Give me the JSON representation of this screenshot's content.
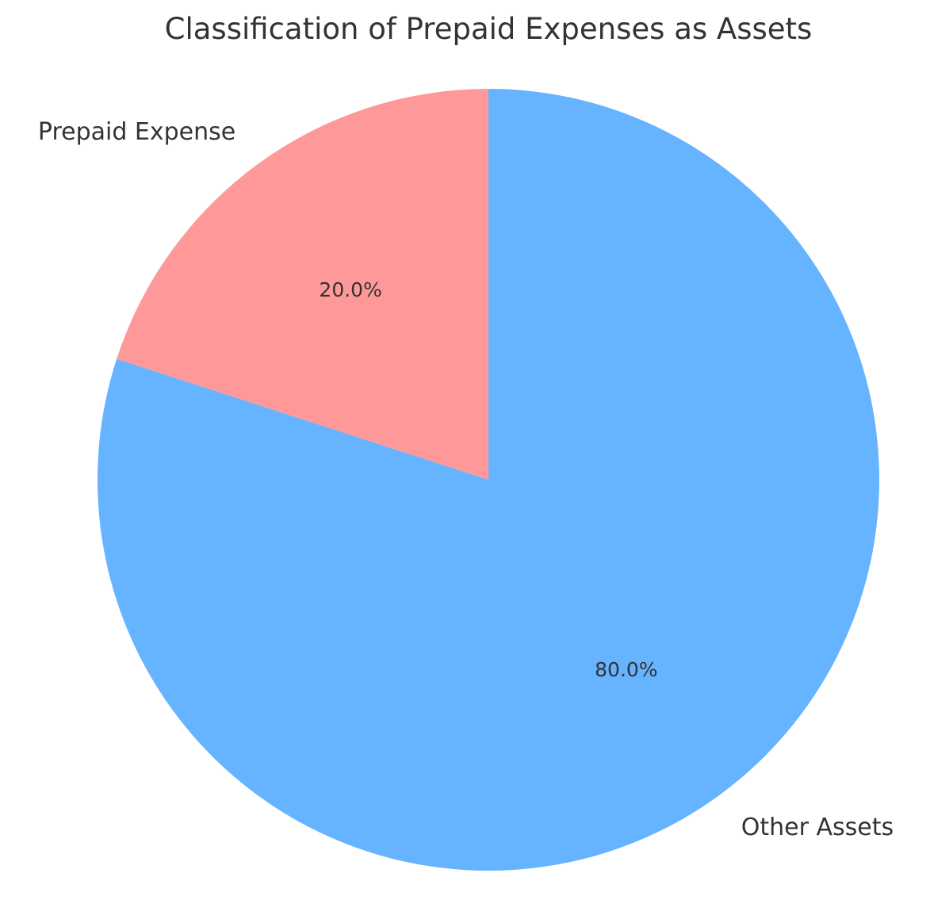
{
  "chart_data": {
    "type": "pie",
    "title": "Classification of Prepaid Expenses as Assets",
    "slices": [
      {
        "label": "Prepaid Expense",
        "value": 20,
        "pct_label": "20.0%",
        "color": "#ff9999"
      },
      {
        "label": "Other Assets",
        "value": 80,
        "pct_label": "80.0%",
        "color": "#66b3ff"
      }
    ],
    "start_angle_deg": 90,
    "direction": "counterclockwise",
    "legend": "none"
  }
}
